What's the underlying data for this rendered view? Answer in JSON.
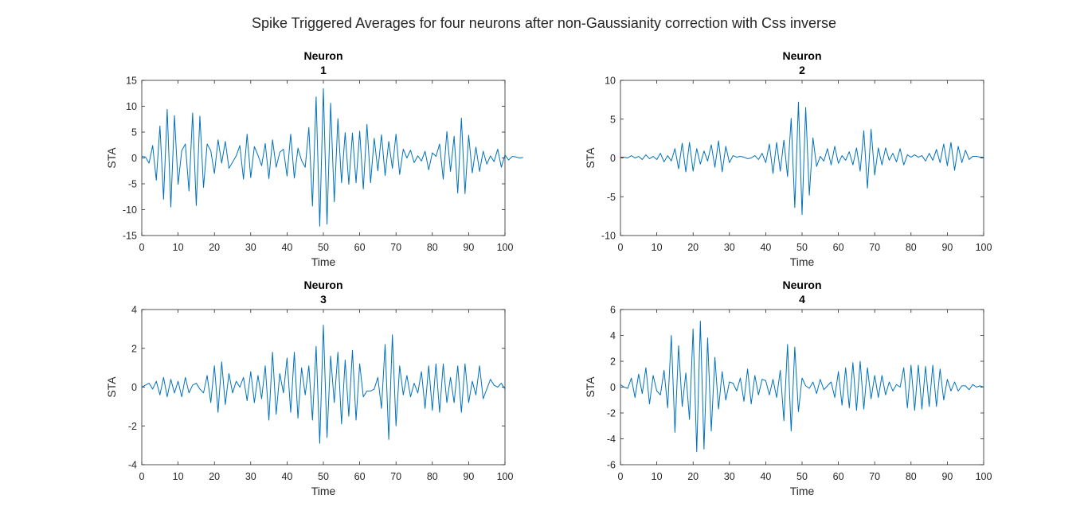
{
  "figure": {
    "title": "Spike Triggered Averages for four neurons after non-Gaussianity correction with Css inverse"
  },
  "colors": {
    "line": "#0072bd",
    "axes": "#262626",
    "background": "#ffffff"
  },
  "chart_data": [
    {
      "type": "line",
      "title": "Neuron",
      "subtitle": "1",
      "xlabel": "Time",
      "ylabel": "STA",
      "xlim": [
        0,
        100
      ],
      "ylim": [
        -15,
        15
      ],
      "xticks": [
        0,
        10,
        20,
        30,
        40,
        50,
        60,
        70,
        80,
        90,
        100
      ],
      "yticks": [
        -15,
        -10,
        -5,
        0,
        5,
        10,
        15
      ],
      "grid": false,
      "x_start": 0,
      "x_step": 1,
      "values": [
        0.3,
        0.2,
        -1.0,
        2.4,
        -4.3,
        6.2,
        -8.0,
        9.4,
        -9.5,
        8.2,
        -5.1,
        1.4,
        2.7,
        -6.4,
        8.7,
        -9.2,
        8.1,
        -5.7,
        2.7,
        1.4,
        -3.0,
        3.5,
        -1.0,
        3.2,
        -2.0,
        -0.8,
        0.4,
        2.4,
        -4.1,
        4.6,
        -3.8,
        2.2,
        0.5,
        -1.5,
        2.8,
        -4.0,
        3.5,
        -1.8,
        1.1,
        1.7,
        -3.5,
        4.6,
        -3.9,
        1.9,
        -0.5,
        -1.8,
        5.9,
        -9.3,
        11.8,
        -13.2,
        13.4,
        -12.8,
        10.6,
        -8.5,
        7.6,
        -4.8,
        4.9,
        -5.1,
        4.8,
        -4.8,
        5.2,
        -6.0,
        6.5,
        -4.8,
        3.8,
        -2.5,
        4.5,
        -3.4,
        3.2,
        -2.0,
        4.6,
        -3.2,
        1.7,
        0.0,
        1.5,
        -0.9,
        0.4,
        -0.6,
        1.3,
        -2.3,
        1.0,
        0.3,
        2.7,
        -4.1,
        5.1,
        -2.6,
        4.2,
        -6.8,
        7.7,
        -6.9,
        4.4,
        -2.9,
        2.1,
        -2.6,
        1.3,
        -1.2,
        0.4,
        -0.7,
        1.7,
        -1.8,
        0.6,
        -0.4,
        0.3,
        0.2,
        0.0,
        0.1
      ]
    },
    {
      "type": "line",
      "title": "Neuron",
      "subtitle": "2",
      "xlabel": "Time",
      "ylabel": "STA",
      "xlim": [
        0,
        100
      ],
      "ylim": [
        -10,
        10
      ],
      "xticks": [
        0,
        10,
        20,
        30,
        40,
        50,
        60,
        70,
        80,
        90,
        100
      ],
      "yticks": [
        -10,
        -5,
        0,
        5,
        10
      ],
      "grid": false,
      "x_start": 0,
      "x_step": 1,
      "values": [
        0.1,
        0.1,
        0.0,
        0.3,
        0.0,
        0.2,
        -0.2,
        0.4,
        -0.1,
        0.2,
        -0.2,
        0.6,
        -0.5,
        0.3,
        -0.4,
        1.2,
        -1.4,
        1.9,
        -1.8,
        2.0,
        -1.7,
        1.2,
        -0.8,
        0.9,
        -0.4,
        1.7,
        -1.2,
        2.2,
        -1.8,
        1.5,
        -0.6,
        0.3,
        0.1,
        0.2,
        0.1,
        -0.1,
        0.0,
        0.3,
        -0.2,
        0.6,
        -0.6,
        1.8,
        -2.0,
        2.0,
        -1.7,
        2.3,
        -2.4,
        5.1,
        -6.4,
        7.2,
        -7.3,
        6.5,
        -4.8,
        2.6,
        -1.1,
        0.2,
        -0.4,
        1.2,
        -0.9,
        1.5,
        -0.7,
        0.3,
        -0.3,
        0.8,
        -0.9,
        1.3,
        -1.7,
        3.5,
        -3.9,
        3.7,
        -2.2,
        1.3,
        -0.9,
        1.3,
        -0.3,
        0.6,
        -0.5,
        1.2,
        -0.9,
        0.4,
        0.1,
        0.4,
        0.1,
        0.3,
        -0.4,
        0.6,
        -0.3,
        1.1,
        -0.6,
        1.8,
        -1.0,
        2.0,
        -1.6,
        1.5,
        -0.6,
        1.0,
        -0.2,
        0.2,
        0.2,
        0.1,
        0.1
      ]
    },
    {
      "type": "line",
      "title": "Neuron",
      "subtitle": "3",
      "xlabel": "Time",
      "ylabel": "STA",
      "xlim": [
        0,
        100
      ],
      "ylim": [
        -4,
        4
      ],
      "xticks": [
        0,
        10,
        20,
        30,
        40,
        50,
        60,
        70,
        80,
        90,
        100
      ],
      "yticks": [
        -4,
        -2,
        0,
        2,
        4
      ],
      "grid": false,
      "x_start": 0,
      "x_step": 1,
      "values": [
        0.0,
        0.1,
        0.2,
        -0.1,
        0.3,
        -0.4,
        0.5,
        -0.5,
        0.4,
        -0.3,
        0.3,
        -0.5,
        0.5,
        -0.3,
        0.1,
        0.2,
        -0.1,
        -0.3,
        0.6,
        -0.8,
        1.1,
        -1.3,
        1.3,
        -0.9,
        0.7,
        -0.3,
        0.3,
        0.0,
        0.5,
        -0.7,
        0.8,
        -0.8,
        0.6,
        -0.6,
        1.1,
        -1.7,
        1.8,
        -1.4,
        0.7,
        -0.3,
        1.5,
        -1.3,
        1.8,
        -1.6,
        1.0,
        -0.4,
        1.1,
        -1.7,
        2.1,
        -2.9,
        3.2,
        -2.6,
        1.6,
        -0.8,
        1.8,
        -1.9,
        1.4,
        -1.5,
        1.9,
        -1.7,
        1.2,
        -0.5,
        -0.2,
        -0.2,
        -0.1,
        0.5,
        -1.1,
        2.2,
        -2.7,
        2.7,
        -2.0,
        1.1,
        -0.4,
        0.6,
        -0.5,
        0.2,
        -0.3,
        0.8,
        -1.1,
        1.1,
        -1.2,
        1.2,
        -1.3,
        1.2,
        -0.8,
        0.5,
        -0.8,
        1.1,
        -1.3,
        1.2,
        -0.8,
        0.3,
        -0.4,
        1.1,
        -0.6,
        -0.1,
        0.4,
        0.1,
        0.0,
        0.2,
        -0.1
      ]
    },
    {
      "type": "line",
      "title": "Neuron",
      "subtitle": "4",
      "xlabel": "Time",
      "ylabel": "STA",
      "xlim": [
        0,
        100
      ],
      "ylim": [
        -6,
        6
      ],
      "xticks": [
        0,
        10,
        20,
        30,
        40,
        50,
        60,
        70,
        80,
        90,
        100
      ],
      "yticks": [
        -6,
        -4,
        -2,
        0,
        2,
        4,
        6
      ],
      "grid": false,
      "x_start": 0,
      "x_step": 1,
      "values": [
        0.2,
        0.0,
        -0.1,
        0.7,
        -0.8,
        1.0,
        -0.5,
        1.5,
        -1.3,
        0.9,
        -0.3,
        -0.6,
        1.3,
        -1.6,
        4.0,
        -3.5,
        3.2,
        -1.5,
        1.1,
        -2.5,
        4.5,
        -5.0,
        5.1,
        -4.8,
        3.8,
        -3.4,
        2.3,
        -1.7,
        1.2,
        -1.0,
        0.4,
        0.3,
        -0.3,
        0.7,
        -1.1,
        1.4,
        -1.3,
        0.9,
        -0.6,
        0.6,
        0.5,
        -0.6,
        0.6,
        -0.8,
        1.3,
        -2.6,
        3.3,
        -3.4,
        3.1,
        -1.9,
        0.7,
        0.1,
        -0.1,
        0.4,
        -0.5,
        0.6,
        -0.2,
        0.1,
        0.4,
        -0.8,
        1.2,
        -1.4,
        1.5,
        -1.6,
        1.9,
        -1.8,
        2.0,
        -1.7,
        1.5,
        -0.9,
        0.9,
        -0.8,
        0.9,
        -0.6,
        0.4,
        -0.3,
        0.2,
        0.0,
        1.5,
        -1.6,
        1.7,
        -1.8,
        1.7,
        -1.7,
        1.6,
        -1.5,
        1.7,
        -1.5,
        1.4,
        -1.0,
        0.6,
        -0.3,
        0.4,
        -0.3,
        0.1,
        0.1,
        -0.2,
        0.2,
        0.0,
        0.1,
        0.0
      ]
    }
  ]
}
